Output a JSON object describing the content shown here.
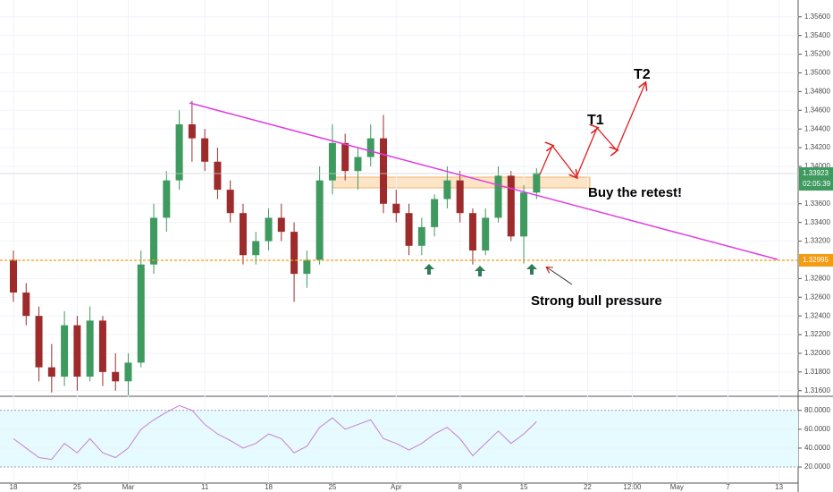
{
  "chart_data": [
    {
      "type": "candlestick",
      "x": [
        0,
        1,
        2,
        3,
        4,
        5,
        6,
        7,
        8,
        9,
        10,
        11,
        12,
        13,
        14,
        15,
        16,
        17,
        18,
        19,
        20,
        21,
        22,
        23,
        24,
        25,
        26,
        27,
        28,
        29,
        30,
        31,
        32,
        33,
        34,
        35,
        36,
        37,
        38,
        39,
        40,
        41
      ],
      "open": [
        1.33,
        1.3265,
        1.324,
        1.3185,
        1.3175,
        1.323,
        1.3175,
        1.3235,
        1.318,
        1.317,
        1.319,
        1.3295,
        1.3345,
        1.3385,
        1.3445,
        1.343,
        1.3405,
        1.3375,
        1.335,
        1.3305,
        1.332,
        1.3345,
        1.333,
        1.3285,
        1.33,
        1.3385,
        1.3425,
        1.3395,
        1.341,
        1.343,
        1.336,
        1.335,
        1.3315,
        1.3335,
        1.3365,
        1.3385,
        1.335,
        1.331,
        1.3345,
        1.339,
        1.3325,
        1.3372
      ],
      "high": [
        1.331,
        1.3275,
        1.325,
        1.321,
        1.3245,
        1.324,
        1.325,
        1.324,
        1.32,
        1.32,
        1.331,
        1.336,
        1.3395,
        1.346,
        1.347,
        1.344,
        1.342,
        1.3385,
        1.336,
        1.333,
        1.3355,
        1.336,
        1.334,
        1.331,
        1.34,
        1.3445,
        1.3435,
        1.342,
        1.3445,
        1.3455,
        1.3375,
        1.336,
        1.3345,
        1.337,
        1.34,
        1.3395,
        1.3355,
        1.3355,
        1.34,
        1.3395,
        1.338,
        1.3398
      ],
      "low": [
        1.3255,
        1.323,
        1.317,
        1.3158,
        1.3165,
        1.316,
        1.317,
        1.3165,
        1.316,
        1.3155,
        1.3185,
        1.3285,
        1.333,
        1.3375,
        1.3405,
        1.3395,
        1.3365,
        1.334,
        1.3295,
        1.3295,
        1.331,
        1.332,
        1.3255,
        1.327,
        1.3295,
        1.337,
        1.3385,
        1.3375,
        1.34,
        1.335,
        1.334,
        1.3305,
        1.3305,
        1.3325,
        1.3355,
        1.334,
        1.3295,
        1.3305,
        1.334,
        1.332,
        1.3296,
        1.3365
      ],
      "close": [
        1.3265,
        1.324,
        1.3185,
        1.3175,
        1.323,
        1.3175,
        1.3235,
        1.318,
        1.317,
        1.319,
        1.3295,
        1.3345,
        1.3385,
        1.3445,
        1.343,
        1.3405,
        1.3375,
        1.335,
        1.3305,
        1.332,
        1.3345,
        1.333,
        1.3285,
        1.33,
        1.3385,
        1.3425,
        1.3395,
        1.341,
        1.343,
        1.336,
        1.335,
        1.3315,
        1.3335,
        1.3365,
        1.3385,
        1.335,
        1.331,
        1.3345,
        1.339,
        1.3325,
        1.3372,
        1.3393
      ],
      "up_color": "#3f9a5f",
      "down_color": "#9e2b2b",
      "xlim": [
        -1.05,
        61.5
      ],
      "ylim": [
        1.3154,
        1.3578
      ],
      "xticks": [
        {
          "value": 0,
          "label": "18"
        },
        {
          "value": 5,
          "label": "25"
        },
        {
          "value": 9,
          "label": "Mar"
        },
        {
          "value": 15,
          "label": "11"
        },
        {
          "value": 20,
          "label": "18"
        },
        {
          "value": 25,
          "label": "25"
        },
        {
          "value": 30,
          "label": "Apr"
        },
        {
          "value": 35,
          "label": "8"
        },
        {
          "value": 40,
          "label": "15"
        },
        {
          "value": 45,
          "label": "22"
        },
        {
          "value": 48.5,
          "label": "12:00"
        },
        {
          "value": 52,
          "label": "May"
        },
        {
          "value": 56,
          "label": "7"
        },
        {
          "value": 60,
          "label": "13"
        }
      ],
      "yticks": [
        {
          "value": 1.356,
          "label": "1.35600"
        },
        {
          "value": 1.354,
          "label": "1.35400"
        },
        {
          "value": 1.352,
          "label": "1.35200"
        },
        {
          "value": 1.35,
          "label": "1.35000"
        },
        {
          "value": 1.348,
          "label": "1.34800"
        },
        {
          "value": 1.346,
          "label": "1.34600"
        },
        {
          "value": 1.344,
          "label": "1.34400"
        },
        {
          "value": 1.342,
          "label": "1.34200"
        },
        {
          "value": 1.34,
          "label": "1.34000"
        },
        {
          "value": 1.336,
          "label": "1.33600"
        },
        {
          "value": 1.334,
          "label": "1.33400"
        },
        {
          "value": 1.332,
          "label": "1.33200"
        },
        {
          "value": 1.328,
          "label": "1.32800"
        },
        {
          "value": 1.326,
          "label": "1.32600"
        },
        {
          "value": 1.324,
          "label": "1.32400"
        },
        {
          "value": 1.322,
          "label": "1.32200"
        },
        {
          "value": 1.32,
          "label": "1.32000"
        },
        {
          "value": 1.318,
          "label": "1.31800"
        },
        {
          "value": 1.316,
          "label": "1.31600"
        }
      ],
      "grid": true,
      "support_level": 1.32995,
      "support_color": "#f39c12",
      "last_price": 1.33923,
      "last_price_color": "#3f9a5f",
      "countdown": "02:05:39",
      "annotations": {
        "t1": "T1",
        "t2": "T2",
        "buy": "Buy the retest!",
        "pressure": "Strong bull pressure"
      }
    },
    {
      "type": "line",
      "x": [
        0,
        1,
        2,
        3,
        4,
        5,
        6,
        7,
        8,
        9,
        10,
        11,
        12,
        13,
        14,
        15,
        16,
        17,
        18,
        19,
        20,
        21,
        22,
        23,
        24,
        25,
        26,
        27,
        28,
        29,
        30,
        31,
        32,
        33,
        34,
        35,
        36,
        37,
        38,
        39,
        40,
        41
      ],
      "values": [
        50,
        40,
        30,
        28,
        45,
        35,
        50,
        35,
        30,
        40,
        60,
        70,
        78,
        85,
        80,
        65,
        55,
        48,
        40,
        45,
        55,
        50,
        35,
        42,
        62,
        72,
        60,
        65,
        70,
        50,
        45,
        38,
        45,
        55,
        62,
        50,
        32,
        45,
        58,
        45,
        55,
        68
      ],
      "color": "#c77fd0",
      "band_color": "#e6fbff",
      "xlim": [
        -1.05,
        61.5
      ],
      "ylim": [
        3,
        93
      ],
      "yticks": [
        {
          "value": 80,
          "label": "80.0000"
        },
        {
          "value": 60,
          "label": "60.0000"
        },
        {
          "value": 40,
          "label": "40.0000"
        },
        {
          "value": 20,
          "label": "20.0000"
        }
      ]
    }
  ]
}
